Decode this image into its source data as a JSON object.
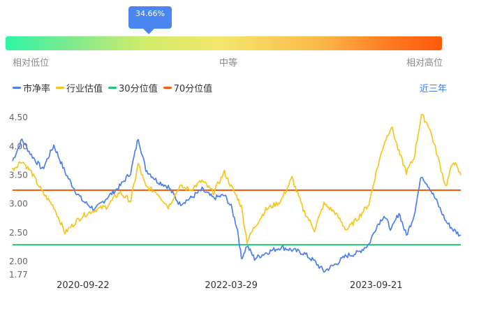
{
  "gauge": {
    "percentile_label": "34.66%",
    "percentile": 34.66,
    "low_label": "相对低位",
    "mid_label": "中等",
    "high_label": "相对高位"
  },
  "range_button": "近三年",
  "colors": {
    "pb": "#4a7ff0",
    "industry": "#f7c51d",
    "p30": "#21c97b",
    "p70": "#ff5a0a",
    "tooltip": "#4a86f0"
  },
  "chart_data": {
    "type": "line",
    "legend_position": "top-left",
    "grid": false,
    "x_ticks": [
      "2020-09-22",
      "2022-03-29",
      "2023-09-21"
    ],
    "y_ticks": [
      "4.50",
      "4.00",
      "3.50",
      "3.00",
      "2.50",
      "2.00",
      "1.77"
    ],
    "y_tick_values": [
      4.5,
      4.0,
      3.5,
      3.0,
      2.5,
      2.0,
      1.77
    ],
    "ylim": [
      1.77,
      4.6
    ],
    "series": [
      {
        "name": "市净率",
        "color": "#4a7ff0",
        "points": [
          [
            "2020-01-03",
            3.75
          ],
          [
            "2020-02-07",
            4.12
          ],
          [
            "2020-03-13",
            3.85
          ],
          [
            "2020-04-24",
            3.6
          ],
          [
            "2020-06-05",
            4.02
          ],
          [
            "2020-07-17",
            3.55
          ],
          [
            "2020-08-28",
            3.2
          ],
          [
            "2020-09-22",
            3.05
          ],
          [
            "2020-11-06",
            2.9
          ],
          [
            "2020-12-18",
            3.1
          ],
          [
            "2021-02-05",
            3.3
          ],
          [
            "2021-03-19",
            3.55
          ],
          [
            "2021-04-16",
            4.15
          ],
          [
            "2021-05-14",
            3.6
          ],
          [
            "2021-06-25",
            3.4
          ],
          [
            "2021-08-06",
            3.3
          ],
          [
            "2021-09-17",
            3.0
          ],
          [
            "2021-10-29",
            3.1
          ],
          [
            "2021-12-10",
            3.25
          ],
          [
            "2022-01-21",
            3.1
          ],
          [
            "2022-03-04",
            3.15
          ],
          [
            "2022-03-29",
            2.95
          ],
          [
            "2022-04-22",
            2.55
          ],
          [
            "2022-05-06",
            2.05
          ],
          [
            "2022-05-27",
            2.28
          ],
          [
            "2022-06-24",
            2.05
          ],
          [
            "2022-08-05",
            2.15
          ],
          [
            "2022-09-30",
            2.25
          ],
          [
            "2022-11-11",
            2.2
          ],
          [
            "2022-12-23",
            2.15
          ],
          [
            "2023-02-03",
            2.0
          ],
          [
            "2023-03-10",
            1.83
          ],
          [
            "2023-04-21",
            1.95
          ],
          [
            "2023-06-02",
            2.1
          ],
          [
            "2023-07-14",
            2.15
          ],
          [
            "2023-08-25",
            2.3
          ],
          [
            "2023-09-21",
            2.6
          ],
          [
            "2023-10-20",
            2.8
          ],
          [
            "2023-11-17",
            2.55
          ],
          [
            "2023-12-15",
            2.85
          ],
          [
            "2024-01-12",
            2.45
          ],
          [
            "2024-02-09",
            2.8
          ],
          [
            "2024-03-08",
            3.5
          ],
          [
            "2024-04-05",
            3.3
          ],
          [
            "2024-05-03",
            3.05
          ],
          [
            "2024-06-07",
            2.7
          ],
          [
            "2024-07-05",
            2.55
          ],
          [
            "2024-08-02",
            2.45
          ]
        ]
      },
      {
        "name": "行业估值",
        "color": "#f7c51d",
        "points": [
          [
            "2020-01-03",
            3.6
          ],
          [
            "2020-02-07",
            3.75
          ],
          [
            "2020-03-13",
            3.55
          ],
          [
            "2020-04-24",
            3.2
          ],
          [
            "2020-06-05",
            2.95
          ],
          [
            "2020-07-17",
            2.5
          ],
          [
            "2020-08-28",
            2.7
          ],
          [
            "2020-09-22",
            2.8
          ],
          [
            "2020-11-06",
            2.9
          ],
          [
            "2020-12-18",
            2.95
          ],
          [
            "2021-02-05",
            3.2
          ],
          [
            "2021-03-19",
            3.05
          ],
          [
            "2021-04-16",
            3.7
          ],
          [
            "2021-05-14",
            3.3
          ],
          [
            "2021-06-25",
            3.2
          ],
          [
            "2021-08-06",
            2.95
          ],
          [
            "2021-09-17",
            3.3
          ],
          [
            "2021-10-29",
            3.25
          ],
          [
            "2021-12-10",
            3.4
          ],
          [
            "2022-01-21",
            3.2
          ],
          [
            "2022-03-04",
            3.55
          ],
          [
            "2022-03-29",
            3.3
          ],
          [
            "2022-04-22",
            3.1
          ],
          [
            "2022-05-06",
            2.95
          ],
          [
            "2022-05-27",
            2.35
          ],
          [
            "2022-06-24",
            2.6
          ],
          [
            "2022-08-05",
            2.9
          ],
          [
            "2022-09-30",
            3.05
          ],
          [
            "2022-11-11",
            3.45
          ],
          [
            "2022-12-23",
            2.9
          ],
          [
            "2023-02-03",
            2.55
          ],
          [
            "2023-03-10",
            3.0
          ],
          [
            "2023-04-21",
            2.85
          ],
          [
            "2023-06-02",
            2.55
          ],
          [
            "2023-07-14",
            2.75
          ],
          [
            "2023-08-25",
            3.0
          ],
          [
            "2023-09-21",
            3.55
          ],
          [
            "2023-10-20",
            4.05
          ],
          [
            "2023-11-17",
            4.35
          ],
          [
            "2023-12-15",
            3.9
          ],
          [
            "2024-01-12",
            3.55
          ],
          [
            "2024-02-09",
            3.8
          ],
          [
            "2024-03-08",
            4.55
          ],
          [
            "2024-04-05",
            4.35
          ],
          [
            "2024-05-03",
            3.9
          ],
          [
            "2024-06-07",
            3.3
          ],
          [
            "2024-07-05",
            3.75
          ],
          [
            "2024-08-02",
            3.5
          ]
        ]
      },
      {
        "name": "30分位值",
        "color": "#21c97b",
        "value": 2.29
      },
      {
        "name": "70分位值",
        "color": "#ff5a0a",
        "value": 3.24
      }
    ]
  }
}
